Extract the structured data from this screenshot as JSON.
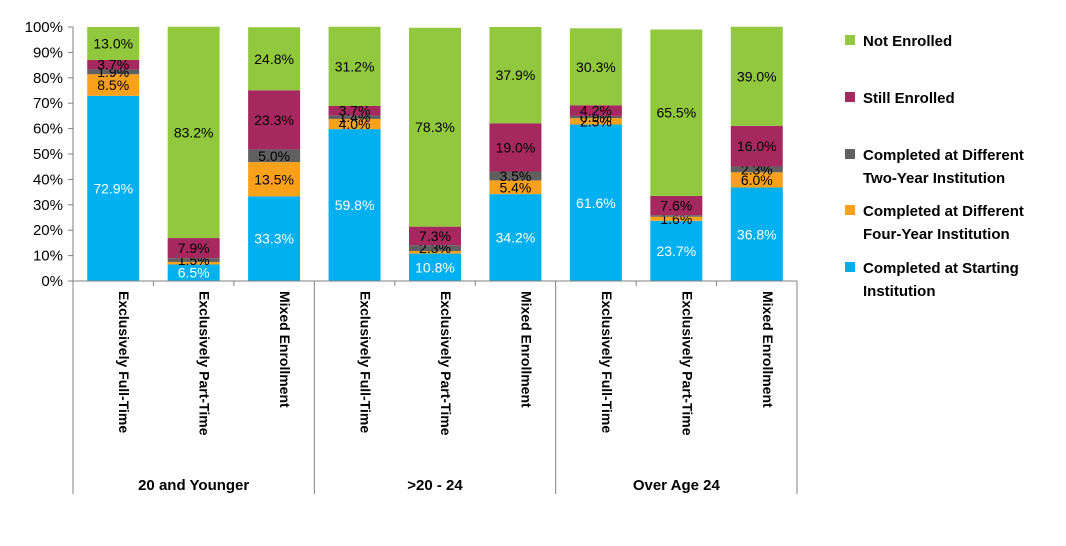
{
  "chart_data": {
    "type": "bar",
    "stacked": true,
    "percent": true,
    "ylim": [
      0,
      100
    ],
    "y_ticks": [
      "0%",
      "10%",
      "20%",
      "30%",
      "40%",
      "50%",
      "60%",
      "70%",
      "80%",
      "90%",
      "100%"
    ],
    "grid": false,
    "legend_position": "right",
    "groups": [
      "20 and Younger",
      ">20 - 24",
      "Over Age 24"
    ],
    "categories": [
      "Exclusively Full-Time",
      "Exclusively Part-Time",
      "Mixed Enrollment",
      "Exclusively Full-Time",
      "Exclusively Part-Time",
      "Mixed Enrollment",
      "Exclusively Full-Time",
      "Exclusively Part-Time",
      "Mixed Enrollment"
    ],
    "series": [
      {
        "name": "Completed at Starting Institution",
        "color": "#00b0f0",
        "values": [
          72.9,
          6.5,
          33.3,
          59.8,
          10.8,
          34.2,
          61.6,
          23.7,
          36.8
        ],
        "labels": [
          "72.9%",
          "6.5%",
          "33.3%",
          "59.8%",
          "10.8%",
          "34.2%",
          "61.6%",
          "23.7%",
          "36.8%"
        ]
      },
      {
        "name": "Completed at Different Four-Year Institution",
        "color": "#f9a11b",
        "values": [
          8.5,
          1.0,
          13.5,
          4.0,
          1.0,
          5.4,
          2.5,
          1.6,
          6.0
        ],
        "labels": [
          "8.5%",
          "",
          "13.5%",
          "4.0%",
          "",
          "5.4%",
          "2.5%",
          "1.6%",
          "6.0%"
        ]
      },
      {
        "name": "Completed at Different Two-Year Institution",
        "color": "#606060",
        "values": [
          1.9,
          1.5,
          5.0,
          1.4,
          2.3,
          3.5,
          0.9,
          0.6,
          2.3
        ],
        "labels": [
          "1.9%",
          "1.5%",
          "5.0%",
          "1.4%",
          "2.3%",
          "3.5%",
          "0.9%",
          "",
          "2.3%"
        ]
      },
      {
        "name": "Still Enrolled",
        "color": "#a5285f",
        "values": [
          3.7,
          7.9,
          23.3,
          3.7,
          7.3,
          19.0,
          4.2,
          7.6,
          16.0
        ],
        "labels": [
          "3.7%",
          "7.9%",
          "23.3%",
          "3.7%",
          "7.3%",
          "19.0%",
          "4.2%",
          "7.6%",
          "16.0%"
        ]
      },
      {
        "name": "Not Enrolled",
        "color": "#92c83e",
        "values": [
          13.0,
          83.2,
          24.8,
          31.2,
          78.3,
          37.9,
          30.3,
          65.5,
          39.0
        ],
        "labels": [
          "13.0%",
          "83.2%",
          "24.8%",
          "31.2%",
          "78.3%",
          "37.9%",
          "30.3%",
          "65.5%",
          "39.0%"
        ]
      }
    ],
    "legend_order": [
      {
        "name": "Not Enrolled",
        "color": "#92c83e"
      },
      {
        "name": "Still Enrolled",
        "color": "#a5285f"
      },
      {
        "name": "Completed at Different Two-Year Institution",
        "color": "#606060",
        "lines": [
          "Completed at Different",
          "Two-Year Institution"
        ]
      },
      {
        "name": "Completed at Different Four-Year Institution",
        "color": "#f9a11b",
        "lines": [
          "Completed at Different",
          "Four-Year Institution"
        ]
      },
      {
        "name": "Completed at Starting Institution",
        "color": "#00b0f0",
        "lines": [
          "Completed at Starting",
          "Institution"
        ]
      }
    ]
  }
}
